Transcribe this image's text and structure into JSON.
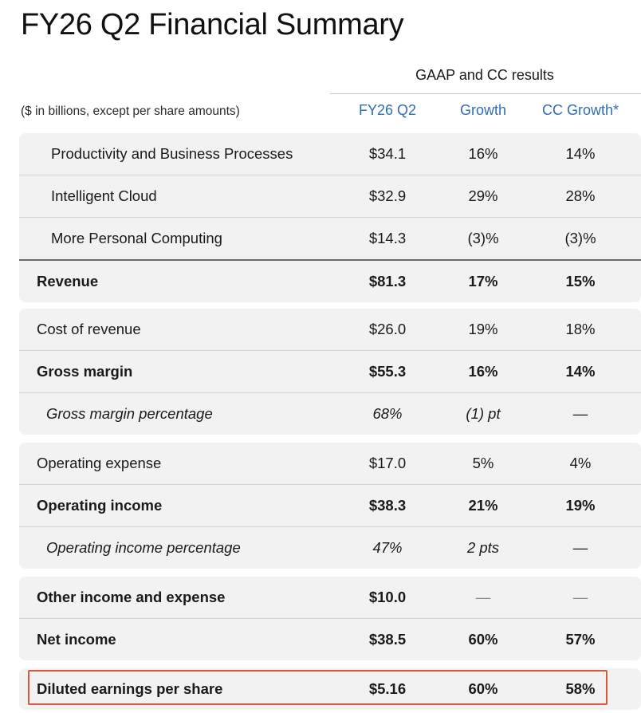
{
  "title": "FY26 Q2 Financial Summary",
  "group_header": "GAAP and CC results",
  "units_label": "($ in billions, except per share amounts)",
  "columns": [
    "FY26 Q2",
    "Growth",
    "CC Growth*"
  ],
  "accent_color": "#2f6db5",
  "highlight_color": "#d9573f",
  "blocks": [
    {
      "rows": [
        {
          "label": "Productivity and Business Processes",
          "fy26q2": "$34.1",
          "growth": "16%",
          "cc_growth": "14%"
        },
        {
          "label": "Intelligent Cloud",
          "fy26q2": "$32.9",
          "growth": "29%",
          "cc_growth": "28%"
        },
        {
          "label": "More Personal Computing",
          "fy26q2": "$14.3",
          "growth": "(3)%",
          "cc_growth": "(3)%"
        },
        {
          "label": "Revenue",
          "fy26q2": "$81.3",
          "growth": "17%",
          "cc_growth": "15%"
        }
      ]
    },
    {
      "rows": [
        {
          "label": "Cost of revenue",
          "fy26q2": "$26.0",
          "growth": "19%",
          "cc_growth": "18%"
        },
        {
          "label": "Gross margin",
          "fy26q2": "$55.3",
          "growth": "16%",
          "cc_growth": "14%"
        },
        {
          "label": "Gross margin percentage",
          "fy26q2": "68%",
          "growth": "(1) pt",
          "cc_growth": "—"
        }
      ]
    },
    {
      "rows": [
        {
          "label": "Operating expense",
          "fy26q2": "$17.0",
          "growth": "5%",
          "cc_growth": "4%"
        },
        {
          "label": "Operating income",
          "fy26q2": "$38.3",
          "growth": "21%",
          "cc_growth": "19%"
        },
        {
          "label": "Operating income percentage",
          "fy26q2": "47%",
          "growth": "2 pts",
          "cc_growth": "—"
        }
      ]
    },
    {
      "rows": [
        {
          "label": "Other income and expense",
          "fy26q2": "$10.0",
          "growth": "—",
          "cc_growth": "—"
        },
        {
          "label": "Net income",
          "fy26q2": "$38.5",
          "growth": "60%",
          "cc_growth": "57%"
        }
      ]
    },
    {
      "rows": [
        {
          "label": "Diluted earnings per share",
          "fy26q2": "$5.16",
          "growth": "60%",
          "cc_growth": "58%"
        }
      ]
    }
  ]
}
